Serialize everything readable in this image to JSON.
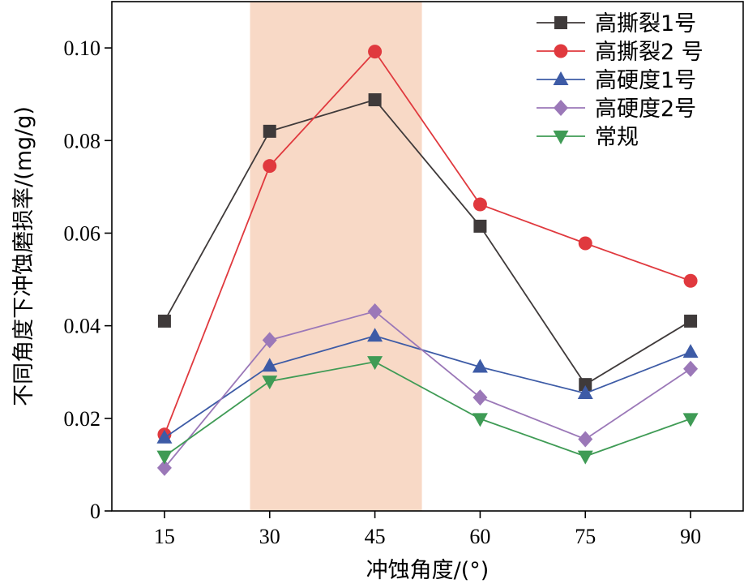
{
  "chart_data": {
    "type": "line",
    "title": "",
    "xlabel": "冲蚀角度/(°)",
    "ylabel": "不同角度下冲蚀磨损率/(mg/g)",
    "x": [
      15,
      30,
      45,
      60,
      75,
      90
    ],
    "xlim": [
      7.5,
      97.5
    ],
    "ylim": [
      0,
      0.11
    ],
    "x_ticks": [
      15,
      30,
      45,
      60,
      75,
      90
    ],
    "y_ticks": [
      0,
      0.02,
      0.04,
      0.06,
      0.08,
      0.1
    ],
    "y_tick_labels": [
      "0",
      "0.02",
      "0.04",
      "0.06",
      "0.08",
      "0.10"
    ],
    "highlight_band": {
      "x0": 27.2,
      "x1": 51.7,
      "color": "#f8d9c6"
    },
    "legend_position": "top-right",
    "series": [
      {
        "name": "高撕裂1号",
        "color": "#3f3a3a",
        "marker": "square",
        "values": [
          0.041,
          0.082,
          0.0888,
          0.0615,
          0.0273,
          0.041
        ]
      },
      {
        "name": "高撕裂2 号",
        "color": "#e0393e",
        "marker": "circle",
        "values": [
          0.0165,
          0.0745,
          0.0992,
          0.0662,
          0.0578,
          0.0497
        ]
      },
      {
        "name": "高硬度1号",
        "color": "#3d5ba6",
        "marker": "triangle-up",
        "values": [
          0.0158,
          0.0313,
          0.0378,
          0.0311,
          0.0254,
          0.0343
        ]
      },
      {
        "name": "高硬度2号",
        "color": "#9b78b8",
        "marker": "diamond",
        "values": [
          0.0093,
          0.0369,
          0.0431,
          0.0245,
          0.0155,
          0.0307
        ]
      },
      {
        "name": "常规",
        "color": "#3f9b55",
        "marker": "triangle-down",
        "values": [
          0.0118,
          0.028,
          0.0322,
          0.0199,
          0.0118,
          0.0199
        ]
      }
    ]
  }
}
